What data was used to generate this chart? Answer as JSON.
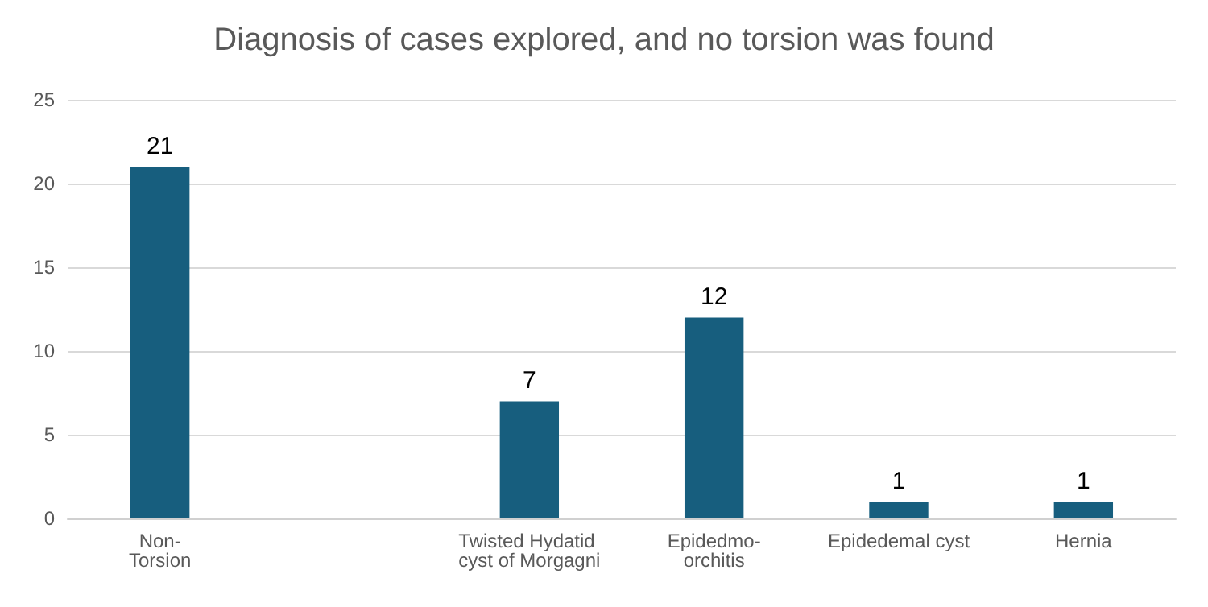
{
  "chart_data": {
    "type": "bar",
    "title": "Diagnosis of cases explored, and no torsion was found",
    "categories": [
      "Non-Torsion",
      null,
      "Twisted Hydatid cyst of Morgagni",
      "Epidedmo-orchitis",
      "Epidedemal cyst",
      "Hernia"
    ],
    "values": [
      21,
      null,
      7,
      12,
      1,
      1
    ],
    "color": "#175e7e",
    "ylim": [
      0,
      25
    ],
    "yticks": [
      0,
      5,
      10,
      15,
      20,
      25
    ],
    "grid": "y",
    "data_labels": true
  }
}
